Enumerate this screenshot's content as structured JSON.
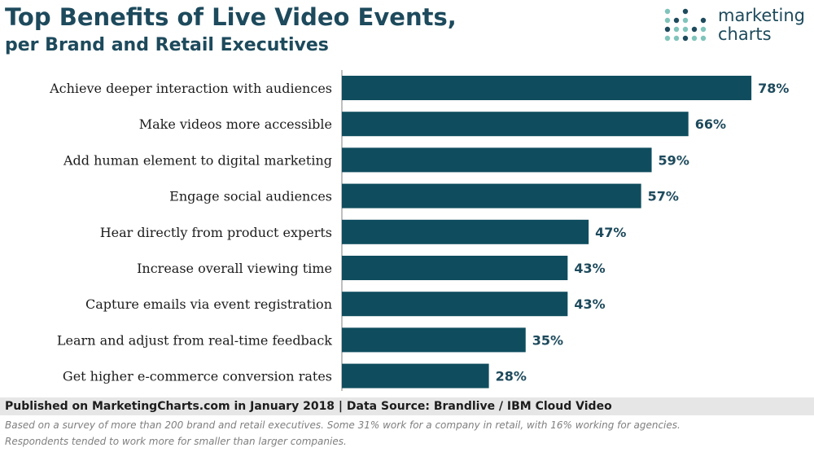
{
  "header": {
    "title": "Top Benefits of Live Video Events,",
    "subtitle": "per Brand and Retail Executives"
  },
  "logo": {
    "line1": "marketing",
    "line2": "charts",
    "icon": "dot-grid-icon"
  },
  "colors": {
    "bar": "#0f4d5e",
    "text": "#1d4a5c",
    "axis": "#7f7f7f",
    "logo_dots": "#7fc4bb",
    "logo_dots_dark": "#1d4a5c"
  },
  "chart_data": {
    "type": "bar",
    "orientation": "horizontal",
    "categories": [
      "Achieve deeper interaction with audiences",
      "Make videos more accessible",
      "Add human element to digital marketing",
      "Engage social audiences",
      "Hear directly from product experts",
      "Increase overall viewing time",
      "Capture emails via event registration",
      "Learn and adjust from real-time feedback",
      "Get higher e-commerce conversion rates"
    ],
    "values": [
      78,
      66,
      59,
      57,
      47,
      43,
      43,
      35,
      28
    ],
    "value_labels": [
      "78%",
      "66%",
      "59%",
      "57%",
      "47%",
      "43%",
      "43%",
      "35%",
      "28%"
    ],
    "xlim": [
      0,
      100
    ],
    "grid": false,
    "legend": "none"
  },
  "footer": {
    "published": "Published on MarketingCharts.com in January 2018 | Data Source: Brandlive / IBM Cloud Video",
    "note_line1": "Based on a survey of more than 200 brand and retail executives. Some 31% work for a company in retail, with 16% working for agencies.",
    "note_line2": "Respondents tended to work more for smaller than larger companies."
  }
}
